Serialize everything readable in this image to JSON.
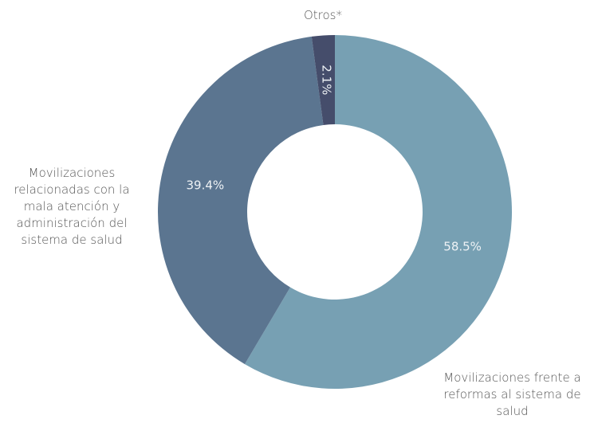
{
  "chart_data": {
    "type": "donut",
    "categories": [
      "Movilizaciones frente a reformas al sistema de salud",
      "Movilizaciones relacionadas con la mala atención y administración del sistema de salud",
      "Otros*"
    ],
    "values": [
      58.5,
      39.4,
      2.1
    ],
    "value_labels": [
      "58.5%",
      "39.4%",
      "2.1%"
    ],
    "colors": [
      "#77a0b3",
      "#5b7590",
      "#454d6b"
    ]
  }
}
